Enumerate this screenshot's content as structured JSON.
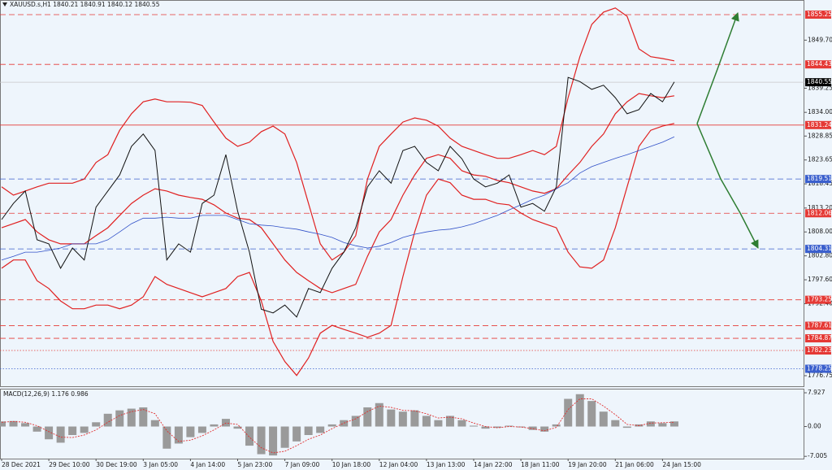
{
  "chart_data": [
    {
      "type": "line",
      "title": "XAUUSD.s,H1  1840.21 1840.91 1840.12 1840.55",
      "categories": [
        "28 Dec 2021",
        null,
        null,
        null,
        "29 Dec 10:00",
        null,
        null,
        null,
        "30 Dec 19:00",
        null,
        null,
        null,
        "3 Jan 05:00",
        null,
        null,
        null,
        "4 Jan 14:00",
        null,
        null,
        null,
        "5 Jan 23:00",
        null,
        null,
        null,
        "7 Jan 09:00",
        null,
        null,
        null,
        "10 Jan 18:00",
        null,
        null,
        null,
        "12 Jan 04:00",
        null,
        null,
        null,
        "13 Jan 13:00",
        null,
        null,
        null,
        "14 Jan 22:00",
        null,
        null,
        null,
        "18 Jan 11:00",
        null,
        null,
        null,
        "19 Jan 20:00",
        null,
        null,
        null,
        "21 Jan 06:00",
        null,
        null,
        null,
        "24 Jan 15:00",
        null
      ],
      "series": [
        {
          "color": "#e02020",
          "width": 1.2,
          "values": [
            1817.8,
            1816.0,
            1816.9,
            1817.8,
            1818.6,
            1818.6,
            1818.6,
            1819.5,
            1823.1,
            1824.8,
            1830.1,
            1833.7,
            1836.3,
            1836.9,
            1836.3,
            1836.3,
            1836.2,
            1835.5,
            1831.9,
            1828.4,
            1826.6,
            1827.5,
            1829.8,
            1831.0,
            1829.3,
            1823.1,
            1814.2,
            1805.4,
            1801.9,
            1803.6,
            1807.2,
            1819.5,
            1826.6,
            1829.3,
            1831.9,
            1832.8,
            1832.3,
            1831.0,
            1828.4,
            1826.6,
            1825.7,
            1824.8,
            1824.0,
            1824.0,
            1824.8,
            1825.7,
            1824.8,
            1826.6,
            1837.2,
            1846.1,
            1853.1,
            1855.8,
            1856.7,
            1854.9,
            1847.8,
            1846.1,
            1845.7,
            1845.2
          ]
        },
        {
          "color": "#e02020",
          "width": 1.2,
          "values": [
            1800.1,
            1801.9,
            1801.9,
            1797.4,
            1795.7,
            1793.0,
            1791.3,
            1791.3,
            1792.1,
            1792.1,
            1791.3,
            1792.1,
            1793.9,
            1798.3,
            1796.6,
            1795.7,
            1794.8,
            1793.9,
            1794.8,
            1795.7,
            1798.3,
            1799.2,
            1793.0,
            1784.2,
            1779.8,
            1776.8,
            1780.6,
            1786.0,
            1787.7,
            1786.8,
            1786.0,
            1785.1,
            1786.0,
            1787.7,
            1798.3,
            1808.0,
            1816.0,
            1819.5,
            1818.7,
            1816.0,
            1815.1,
            1815.1,
            1814.2,
            1813.9,
            1812.1,
            1810.7,
            1809.8,
            1808.9,
            1803.6,
            1800.4,
            1800.1,
            1801.9,
            1808.9,
            1817.8,
            1826.6,
            1830.1,
            1831.0,
            1831.6
          ]
        },
        {
          "color": "#e02020",
          "width": 1.2,
          "values": [
            1808.9,
            1809.8,
            1810.7,
            1808.0,
            1806.3,
            1805.4,
            1805.4,
            1805.4,
            1807.2,
            1808.9,
            1811.6,
            1814.2,
            1816.0,
            1817.4,
            1816.9,
            1816.0,
            1815.5,
            1815.1,
            1813.9,
            1812.1,
            1811.0,
            1810.7,
            1808.9,
            1805.4,
            1801.9,
            1799.2,
            1797.4,
            1795.7,
            1794.8,
            1795.7,
            1796.6,
            1802.7,
            1808.0,
            1810.7,
            1816.0,
            1820.4,
            1824.0,
            1824.8,
            1824.0,
            1821.3,
            1820.4,
            1820.1,
            1819.2,
            1818.7,
            1817.8,
            1816.9,
            1816.4,
            1817.4,
            1820.4,
            1823.1,
            1826.6,
            1829.3,
            1833.7,
            1836.3,
            1838.1,
            1837.6,
            1837.2,
            1837.6
          ]
        },
        {
          "color": "#3050c8",
          "width": 0.8,
          "values": [
            1801.9,
            1802.7,
            1803.6,
            1803.6,
            1804.0,
            1804.5,
            1805.4,
            1805.4,
            1805.4,
            1806.3,
            1808.0,
            1809.8,
            1811.0,
            1811.0,
            1811.2,
            1811.0,
            1811.0,
            1811.6,
            1811.6,
            1811.6,
            1810.7,
            1809.8,
            1809.5,
            1809.3,
            1808.9,
            1808.6,
            1808.0,
            1807.5,
            1806.8,
            1805.7,
            1805.0,
            1804.5,
            1804.9,
            1805.7,
            1806.8,
            1807.5,
            1808.0,
            1808.4,
            1808.6,
            1809.1,
            1809.8,
            1810.7,
            1811.6,
            1812.8,
            1813.9,
            1815.1,
            1816.0,
            1817.4,
            1818.7,
            1820.8,
            1822.2,
            1823.1,
            1824.0,
            1824.8,
            1825.7,
            1826.6,
            1827.5,
            1828.7
          ]
        },
        {
          "color": "#111111",
          "width": 1,
          "values": [
            1810.7,
            1814.2,
            1816.9,
            1806.3,
            1805.4,
            1800.1,
            1804.5,
            1801.9,
            1813.4,
            1816.9,
            1820.4,
            1826.6,
            1829.3,
            1825.7,
            1801.9,
            1805.4,
            1803.6,
            1814.2,
            1816.0,
            1824.8,
            1812.5,
            1803.6,
            1791.2,
            1790.4,
            1792.1,
            1789.5,
            1795.7,
            1794.8,
            1800.1,
            1803.6,
            1808.9,
            1817.8,
            1821.3,
            1818.6,
            1825.7,
            1826.6,
            1823.1,
            1821.3,
            1826.6,
            1823.9,
            1819.5,
            1817.8,
            1818.6,
            1820.4,
            1813.4,
            1814.2,
            1812.5,
            1817.8,
            1841.6,
            1840.7,
            1839.0,
            1839.9,
            1837.2,
            1833.7,
            1834.6,
            1838.1,
            1836.3,
            1840.6
          ]
        }
      ],
      "ylim": [
        1774.45,
        1858.43
      ],
      "yticks": [
        {
          "value": 1849.7,
          "label": "1849.70"
        },
        {
          "value": 1839.25,
          "label": "1839.25"
        },
        {
          "value": 1834.0,
          "label": "1834.00"
        },
        {
          "value": 1828.85,
          "label": "1828.85"
        },
        {
          "value": 1823.65,
          "label": "1823.65"
        },
        {
          "value": 1818.45,
          "label": "1818.45"
        },
        {
          "value": 1813.2,
          "label": "1813.20"
        },
        {
          "value": 1808.0,
          "label": "1808.00"
        },
        {
          "value": 1802.8,
          "label": "1802.80"
        },
        {
          "value": 1797.6,
          "label": "1797.60"
        },
        {
          "value": 1792.4,
          "label": "1792.40"
        },
        {
          "value": 1776.75,
          "label": "1776.75"
        }
      ],
      "levels": [
        {
          "value": 1855.25,
          "label": "1855.25",
          "color": "#e53935",
          "style": "dashed"
        },
        {
          "value": 1844.43,
          "label": "1844.43",
          "color": "#e53935",
          "style": "dashed"
        },
        {
          "value": 1840.55,
          "label": "1840.55",
          "color": "#000000",
          "line_color": "#c8c8c8",
          "style": "solid"
        },
        {
          "value": 1831.24,
          "label": "1831.24",
          "color": "#e53935",
          "style": "solid"
        },
        {
          "value": 1819.51,
          "label": "1819.51",
          "color": "#3a5fcd",
          "style": "dashed"
        },
        {
          "value": 1812.06,
          "label": "1812.06",
          "color": "#e53935",
          "style": "dashed"
        },
        {
          "value": 1804.31,
          "label": "1804.31",
          "color": "#3a5fcd",
          "style": "dashed"
        },
        {
          "value": 1793.25,
          "label": "1793.25",
          "color": "#e53935",
          "style": "dashed"
        },
        {
          "value": 1787.61,
          "label": "1787.61",
          "color": "#e53935",
          "style": "dashed"
        },
        {
          "value": 1784.87,
          "label": "1784.87",
          "color": "#e53935",
          "style": "dashed"
        },
        {
          "value": 1782.23,
          "label": "1782.23",
          "color": "#e53935",
          "style": "dotted"
        },
        {
          "value": 1778.25,
          "label": "1778.25",
          "color": "#3a5fcd",
          "style": "dotted"
        }
      ]
    },
    {
      "type": "bar",
      "title": "MACD(12,26,9) 1.176 0.986",
      "series": [
        {
          "type": "bar",
          "color": "#9a9a9a",
          "values": [
            1.2,
            1.3,
            0.8,
            -1.2,
            -3.0,
            -3.8,
            -2.0,
            -1.5,
            1.0,
            3.0,
            3.8,
            4.2,
            4.5,
            1.5,
            -5.2,
            -4.0,
            -2.5,
            -1.5,
            0.5,
            1.8,
            -0.5,
            -4.5,
            -6.5,
            -6.8,
            -5.0,
            -3.5,
            -2.0,
            -1.5,
            0.5,
            1.5,
            2.5,
            4.5,
            5.5,
            4.0,
            3.5,
            3.8,
            2.5,
            1.5,
            2.5,
            1.5,
            0.2,
            -0.5,
            -0.3,
            0.2,
            -0.2,
            -0.8,
            -1.2,
            0.5,
            6.5,
            7.6,
            6.0,
            3.5,
            1.5,
            -0.3,
            0.5,
            1.2,
            0.8,
            1.2
          ]
        },
        {
          "type": "line",
          "color": "#e03030",
          "values": [
            1.0,
            1.2,
            1.0,
            0.2,
            -1.2,
            -2.5,
            -2.6,
            -2.0,
            -0.8,
            1.0,
            2.6,
            3.5,
            4.0,
            3.0,
            -1.0,
            -3.5,
            -3.2,
            -2.2,
            -0.8,
            0.8,
            0.5,
            -2.5,
            -5.0,
            -6.2,
            -5.8,
            -4.5,
            -3.0,
            -2.0,
            -0.5,
            0.8,
            1.8,
            3.5,
            4.8,
            4.5,
            3.8,
            3.7,
            3.0,
            2.0,
            2.2,
            1.8,
            0.8,
            0,
            -0.3,
            0,
            -0.1,
            -0.5,
            -1.0,
            -0.2,
            4.0,
            6.5,
            6.5,
            4.8,
            2.8,
            0.5,
            0.2,
            0.8,
            0.9,
            1.0
          ]
        }
      ],
      "ylim": [
        -7.54,
        8.89
      ],
      "yticks": [
        {
          "value": 7.927,
          "label": "7.927"
        },
        {
          "value": 0,
          "label": "0.00"
        },
        {
          "value": -7.005,
          "label": "-7.005"
        }
      ]
    }
  ]
}
